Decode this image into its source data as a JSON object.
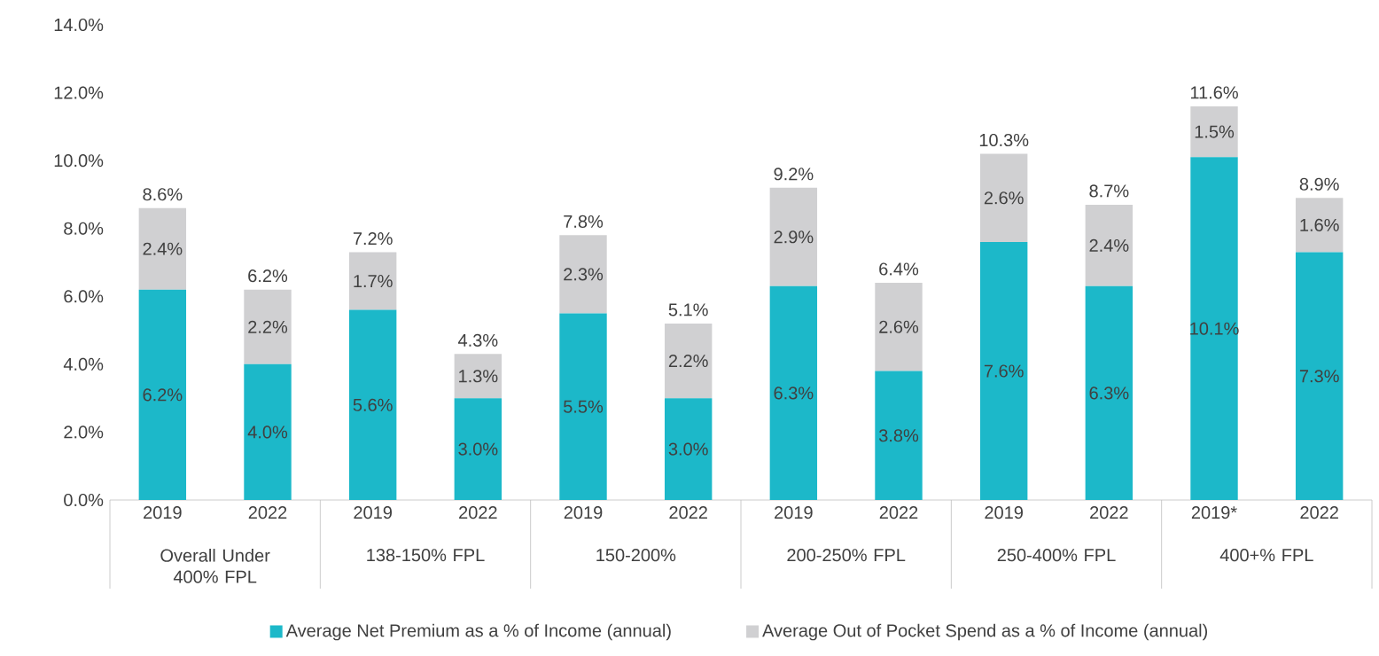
{
  "chart_data": {
    "type": "bar",
    "stacked": true,
    "categories": [
      "2019",
      "2022",
      "2019",
      "2022",
      "2019",
      "2022",
      "2019",
      "2022",
      "2019",
      "2022",
      "2019*",
      "2022"
    ],
    "series": [
      {
        "name": "Average Net Premium as a % of Income (annual)",
        "color": "#1cb8c9",
        "values": [
          6.2,
          4.0,
          5.6,
          3.0,
          5.5,
          3.0,
          6.3,
          3.8,
          7.6,
          6.3,
          10.1,
          7.3
        ],
        "value_labels": [
          "6.2%",
          "4.0%",
          "5.6%",
          "3.0%",
          "5.5%",
          "3.0%",
          "6.3%",
          "3.8%",
          "7.6%",
          "6.3%",
          "10.1%",
          "7.3%"
        ]
      },
      {
        "name": "Average Out of Pocket Spend as a % of Income (annual)",
        "color": "#d0d0d2",
        "values": [
          2.4,
          2.2,
          1.7,
          1.3,
          2.3,
          2.2,
          2.9,
          2.6,
          2.6,
          2.4,
          1.5,
          1.6
        ],
        "value_labels": [
          "2.4%",
          "2.2%",
          "1.7%",
          "1.3%",
          "2.3%",
          "2.2%",
          "2.9%",
          "2.6%",
          "2.6%",
          "2.4%",
          "1.5%",
          "1.6%"
        ]
      }
    ],
    "totals": [
      "8.6%",
      "6.2%",
      "7.2%",
      "4.3%",
      "7.8%",
      "5.1%",
      "9.2%",
      "6.4%",
      "10.3%",
      "8.7%",
      "11.6%",
      "8.9%"
    ],
    "annotations": [
      "Overall Under 400% FPL",
      "138-150% FPL",
      "150-200%",
      "200-250% FPL",
      "250-400% FPL",
      "400+% FPL"
    ],
    "ylim": [
      0,
      14
    ],
    "yticks": [
      {
        "value": 0,
        "label": "0.0%"
      },
      {
        "value": 2,
        "label": "2.0%"
      },
      {
        "value": 4,
        "label": "4.0%"
      },
      {
        "value": 6,
        "label": "6.0%"
      },
      {
        "value": 8,
        "label": "8.0%"
      },
      {
        "value": 10,
        "label": "10.0%"
      },
      {
        "value": 12,
        "label": "12.0%"
      },
      {
        "value": 14,
        "label": "14.0%"
      }
    ],
    "legend": "bottom"
  }
}
